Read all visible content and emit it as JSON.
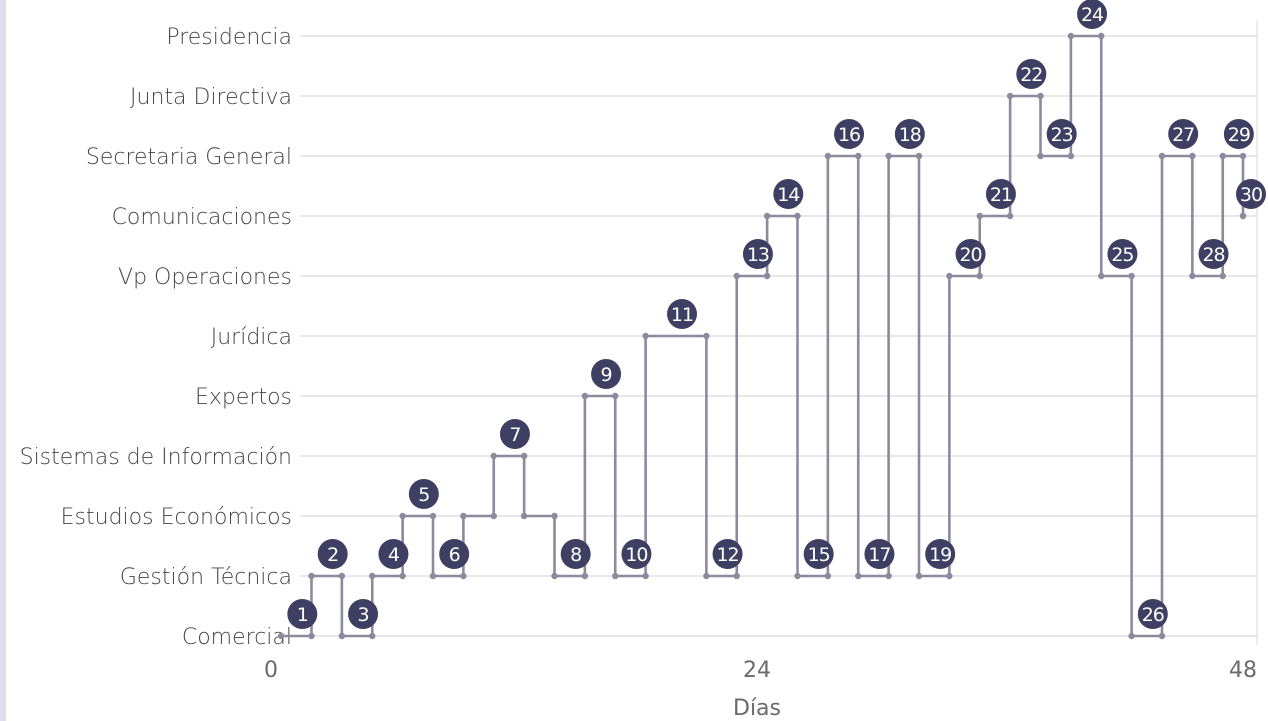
{
  "chart_data": {
    "type": "line",
    "xlabel": "Días",
    "ylabel": "",
    "xlim": [
      0,
      48
    ],
    "xticks": [
      "0",
      "24",
      "48"
    ],
    "categories": [
      "Comercial",
      "Gestión Técnica",
      "Estudios Económicos",
      "Sistemas de Información",
      "Expertos",
      "Jurídica",
      "Vp Operaciones",
      "Comunicaciones",
      "Secretaria General",
      "Junta Directiva",
      "Presidencia"
    ],
    "series": [
      {
        "name": "",
        "steps": [
          {
            "n": "1",
            "category": "Comercial",
            "start": 0.5,
            "end": 2.0
          },
          {
            "n": "2",
            "category": "Gestión Técnica",
            "start": 2.0,
            "end": 3.5
          },
          {
            "n": "3",
            "category": "Comercial",
            "start": 3.5,
            "end": 5.0
          },
          {
            "n": "4",
            "category": "Gestión Técnica",
            "start": 5.0,
            "end": 6.5
          },
          {
            "n": "5",
            "category": "Estudios Económicos",
            "start": 6.5,
            "end": 8.0
          },
          {
            "n": "6",
            "category": "Gestión Técnica",
            "start": 8.0,
            "end": 9.5
          },
          {
            "n": "",
            "category": "Estudios Económicos",
            "start": 9.5,
            "end": 11.0
          },
          {
            "n": "7",
            "category": "Sistemas de Información",
            "start": 11.0,
            "end": 12.5
          },
          {
            "n": "",
            "category": "Estudios Económicos",
            "start": 12.5,
            "end": 14.0
          },
          {
            "n": "8",
            "category": "Gestión Técnica",
            "start": 14.0,
            "end": 15.5
          },
          {
            "n": "9",
            "category": "Expertos",
            "start": 15.5,
            "end": 17.0
          },
          {
            "n": "10",
            "category": "Gestión Técnica",
            "start": 17.0,
            "end": 18.5
          },
          {
            "n": "11",
            "category": "Jurídica",
            "start": 18.5,
            "end": 21.5
          },
          {
            "n": "12",
            "category": "Gestión Técnica",
            "start": 21.5,
            "end": 23.0
          },
          {
            "n": "13",
            "category": "Vp Operaciones",
            "start": 23.0,
            "end": 24.5
          },
          {
            "n": "14",
            "category": "Comunicaciones",
            "start": 24.5,
            "end": 26.0
          },
          {
            "n": "15",
            "category": "Gestión Técnica",
            "start": 26.0,
            "end": 27.5
          },
          {
            "n": "16",
            "category": "Secretaria General",
            "start": 27.5,
            "end": 29.0
          },
          {
            "n": "17",
            "category": "Gestión Técnica",
            "start": 29.0,
            "end": 30.5
          },
          {
            "n": "18",
            "category": "Secretaria General",
            "start": 30.5,
            "end": 32.0
          },
          {
            "n": "19",
            "category": "Gestión Técnica",
            "start": 32.0,
            "end": 33.5
          },
          {
            "n": "20",
            "category": "Vp Operaciones",
            "start": 33.5,
            "end": 35.0
          },
          {
            "n": "21",
            "category": "Comunicaciones",
            "start": 35.0,
            "end": 36.5
          },
          {
            "n": "22",
            "category": "Junta Directiva",
            "start": 36.5,
            "end": 38.0
          },
          {
            "n": "23",
            "category": "Secretaria General",
            "start": 38.0,
            "end": 39.5
          },
          {
            "n": "24",
            "category": "Presidencia",
            "start": 39.5,
            "end": 41.0
          },
          {
            "n": "25",
            "category": "Vp Operaciones",
            "start": 41.0,
            "end": 42.5
          },
          {
            "n": "26",
            "category": "Comercial",
            "start": 42.5,
            "end": 44.0
          },
          {
            "n": "27",
            "category": "Secretaria General",
            "start": 44.0,
            "end": 45.5
          },
          {
            "n": "28",
            "category": "Vp Operaciones",
            "start": 45.5,
            "end": 47.0
          },
          {
            "n": "29",
            "category": "Secretaria General",
            "start": 47.0,
            "end": 48.0
          },
          {
            "n": "30",
            "category": "Comunicaciones",
            "start": 48.0,
            "end": 48.0
          }
        ]
      }
    ],
    "grid": true,
    "legend": "none",
    "colors": {
      "line": "#8c8a9c",
      "badge": "#3f3f63",
      "grid": "#dadada",
      "badge_text": "#ffffff"
    }
  }
}
